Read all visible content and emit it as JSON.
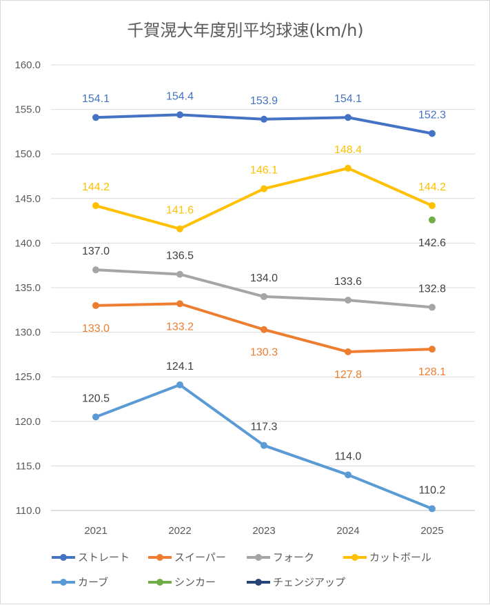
{
  "chart_data": {
    "type": "line",
    "title": "千賀滉大年度別平均球速(km/h)",
    "categories": [
      "2021",
      "2022",
      "2023",
      "2024",
      "2025"
    ],
    "ylim": [
      110,
      160
    ],
    "y_tick_labels": [
      "110.0",
      "115.0",
      "120.0",
      "125.0",
      "130.0",
      "135.0",
      "140.0",
      "145.0",
      "150.0",
      "155.0",
      "160.0"
    ],
    "grid": true,
    "legend_position": "bottom",
    "series": [
      {
        "name": "ストレート",
        "color": "#4472C4",
        "values": [
          154.1,
          154.4,
          153.9,
          154.1,
          152.3
        ],
        "labels": [
          "154.1",
          "154.4",
          "153.9",
          "154.1",
          "152.3"
        ],
        "label_color": "#4472C4"
      },
      {
        "name": "スイーパー",
        "color": "#ED7D31",
        "values": [
          133.0,
          133.2,
          130.3,
          127.8,
          128.1
        ],
        "labels": [
          "133.0",
          "133.2",
          "130.3",
          "127.8",
          "128.1"
        ],
        "label_color": "#ED7D31"
      },
      {
        "name": "フォーク",
        "color": "#A5A5A5",
        "values": [
          137.0,
          136.5,
          134.0,
          133.6,
          132.8
        ],
        "labels": [
          "137.0",
          "136.5",
          "134.0",
          "133.6",
          "132.8"
        ],
        "label_color": "#404040"
      },
      {
        "name": "カットボール",
        "color": "#FFC000",
        "values": [
          144.2,
          141.6,
          146.1,
          148.4,
          144.2
        ],
        "labels": [
          "144.2",
          "141.6",
          "146.1",
          "148.4",
          "144.2"
        ],
        "label_color": "#FFC000"
      },
      {
        "name": "カーブ",
        "color": "#5B9BD5",
        "values": [
          120.5,
          124.1,
          117.3,
          114.0,
          110.2
        ],
        "labels": [
          "120.5",
          "124.1",
          "117.3",
          "114.0",
          "110.2"
        ],
        "label_color": "#404040"
      },
      {
        "name": "シンカー",
        "color": "#70AD47",
        "values": [
          null,
          null,
          null,
          null,
          142.6
        ],
        "labels": [
          null,
          null,
          null,
          null,
          "142.6"
        ],
        "label_color": "#404040"
      },
      {
        "name": "チェンジアップ",
        "color": "#264478",
        "values": [
          null,
          null,
          null,
          null,
          null
        ],
        "labels": [
          null,
          null,
          null,
          null,
          null
        ],
        "label_color": "#404040"
      }
    ]
  }
}
